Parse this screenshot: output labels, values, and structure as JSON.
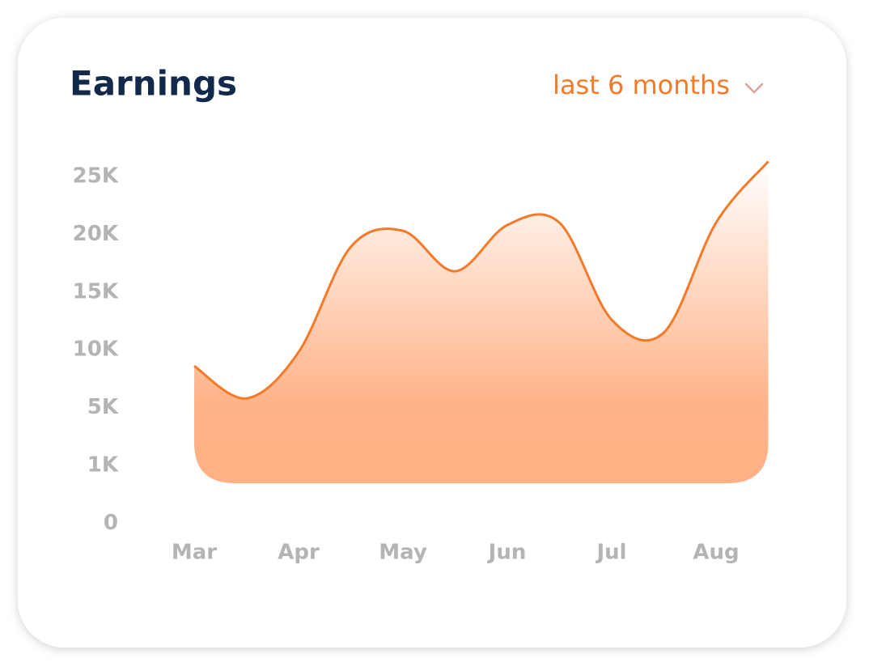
{
  "chart_data": {
    "type": "area",
    "title": "Earnings",
    "period": "last 6 months",
    "categories": [
      "Mar",
      null,
      "Apr",
      null,
      "May",
      null,
      "Jun",
      null,
      "Jul",
      null,
      "Aug",
      null
    ],
    "series": [
      {
        "name": "Earnings",
        "color": "#f47a2a",
        "values": [
          8600,
          5800,
          9800,
          18900,
          20300,
          16800,
          20800,
          21000,
          12600,
          11500,
          21000,
          26300
        ]
      }
    ],
    "yticks": [
      {
        "value": 25000,
        "label": "25K"
      },
      {
        "value": 20000,
        "label": "20K"
      },
      {
        "value": 15000,
        "label": "15K"
      },
      {
        "value": 10000,
        "label": "10K"
      },
      {
        "value": 5000,
        "label": "5K"
      },
      {
        "value": 1000,
        "label": "1K"
      },
      0
    ]
  }
}
